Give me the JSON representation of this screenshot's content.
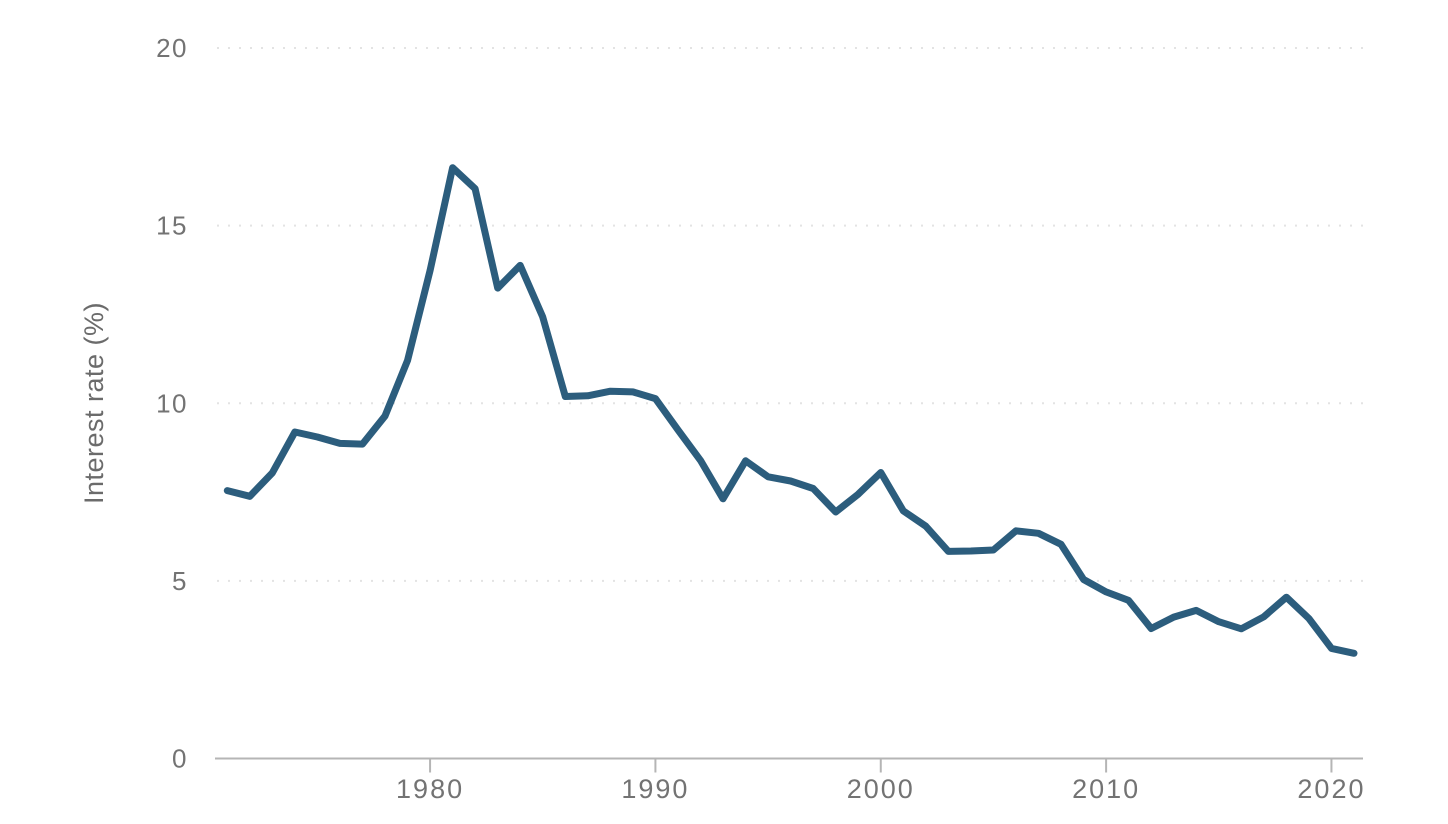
{
  "chart_data": {
    "type": "line",
    "title": "",
    "xlabel": "",
    "ylabel": "Interest rate (%)",
    "xlim": [
      1970.5,
      2021.4
    ],
    "ylim": [
      0,
      20
    ],
    "y_ticks": [
      0,
      5,
      10,
      15,
      20
    ],
    "x_ticks": [
      1980,
      1990,
      2000,
      2010,
      2020
    ],
    "x_tick_labels": [
      "1980",
      "1990",
      "2000",
      "2010",
      "2020"
    ],
    "y_tick_labels": [
      "0",
      "5",
      "10",
      "15",
      "20"
    ],
    "grid": "horizontal-dotted",
    "legend": "none",
    "series": [
      {
        "name": "Interest rate (%)",
        "color": "#2c5d7d",
        "x": [
          1971,
          1972,
          1973,
          1974,
          1975,
          1976,
          1977,
          1978,
          1979,
          1980,
          1981,
          1982,
          1983,
          1984,
          1985,
          1986,
          1987,
          1988,
          1989,
          1990,
          1991,
          1992,
          1993,
          1994,
          1995,
          1996,
          1997,
          1998,
          1999,
          2000,
          2001,
          2002,
          2003,
          2004,
          2005,
          2006,
          2007,
          2008,
          2009,
          2010,
          2011,
          2012,
          2013,
          2014,
          2015,
          2016,
          2017,
          2018,
          2019,
          2020,
          2021
        ],
        "values": [
          7.54,
          7.38,
          8.04,
          9.19,
          9.05,
          8.87,
          8.85,
          9.64,
          11.2,
          13.74,
          16.63,
          16.04,
          13.24,
          13.88,
          12.43,
          10.19,
          10.21,
          10.34,
          10.32,
          10.13,
          9.25,
          8.39,
          7.31,
          8.38,
          7.93,
          7.81,
          7.6,
          6.94,
          7.44,
          8.05,
          6.97,
          6.54,
          5.83,
          5.84,
          5.87,
          6.41,
          6.34,
          6.03,
          5.04,
          4.69,
          4.45,
          3.66,
          3.98,
          4.17,
          3.85,
          3.65,
          3.99,
          4.54,
          3.94,
          3.1,
          2.96
        ]
      }
    ],
    "style": {
      "background": "#ffffff",
      "line_color": "#2c5d7d",
      "axis_color": "#b5b5b5",
      "tick_color": "#b5b5b5",
      "gridline_color": "#e3e3e3",
      "tick_label_color": "#737373",
      "axis_title_color": "#6b6b6b"
    }
  }
}
